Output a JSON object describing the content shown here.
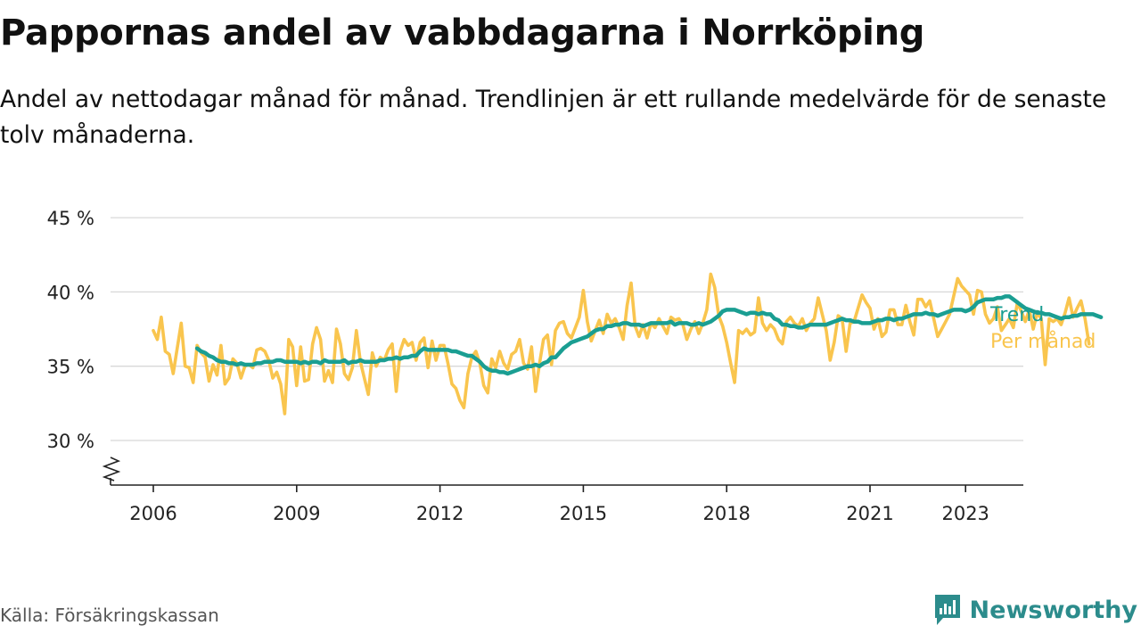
{
  "title": "Pappornas andel av vabbdagarna i Norrköping",
  "subtitle": "Andel av nettodagar månad för månad. Trendlinjen är ett rullande medelvärde för de senaste tolv månaderna.",
  "source": "Källa: Försäkringskassan",
  "brand": "Newsworthy",
  "colors": {
    "trend": "#1a9e92",
    "monthly": "#f9c54e",
    "grid": "#d8d8d8",
    "brand": "#2c8c8c"
  },
  "chart_data": {
    "type": "line",
    "y_unit": "%",
    "ylim": [
      27,
      45
    ],
    "y_ticks": [
      30,
      35,
      40,
      45
    ],
    "y_tick_labels": [
      "30 %",
      "35 %",
      "40 %",
      "45 %"
    ],
    "x_ticks": [
      2006,
      2009,
      2012,
      2015,
      2018,
      2021,
      2023
    ],
    "x_tick_labels": [
      "2006",
      "2009",
      "2012",
      "2015",
      "2018",
      "2021",
      "2023"
    ],
    "axis_break": true,
    "grid": true,
    "legend": "right-end labels",
    "series": [
      {
        "name": "Per månad",
        "color": "#f9c54e",
        "start": "2006-01",
        "values": [
          37.4,
          36.8,
          38.3,
          36.0,
          35.8,
          34.5,
          36.2,
          37.9,
          35.0,
          34.9,
          33.9,
          36.4,
          35.9,
          35.6,
          34.0,
          35.1,
          34.4,
          36.4,
          33.8,
          34.2,
          35.5,
          35.2,
          34.2,
          35.0,
          35.1,
          34.9,
          36.1,
          36.2,
          36.0,
          35.4,
          34.2,
          34.6,
          33.8,
          31.8,
          36.8,
          36.3,
          33.7,
          36.3,
          34.0,
          34.1,
          36.5,
          37.6,
          36.8,
          34.0,
          34.7,
          33.9,
          37.5,
          36.5,
          34.5,
          34.1,
          34.9,
          37.4,
          35.3,
          34.2,
          33.1,
          35.9,
          35.0,
          35.6,
          35.4,
          36.1,
          36.5,
          33.3,
          36.0,
          36.8,
          36.4,
          36.6,
          35.4,
          36.6,
          36.9,
          34.9,
          36.7,
          35.4,
          36.4,
          36.4,
          35.2,
          33.8,
          33.5,
          32.7,
          32.2,
          34.5,
          35.6,
          36.0,
          35.2,
          33.7,
          33.2,
          35.5,
          34.9,
          36.0,
          35.2,
          34.8,
          35.8,
          36.0,
          36.8,
          35.2,
          34.8,
          36.3,
          33.3,
          35.2,
          36.8,
          37.1,
          35.1,
          37.4,
          37.9,
          38.0,
          37.2,
          36.9,
          37.6,
          38.3,
          40.1,
          38.0,
          36.7,
          37.4,
          38.1,
          37.2,
          38.5,
          37.9,
          38.2,
          37.6,
          36.8,
          39.1,
          40.6,
          37.7,
          37.0,
          37.8,
          36.9,
          37.9,
          37.6,
          38.2,
          37.7,
          37.2,
          38.3,
          38.1,
          38.2,
          37.8,
          36.8,
          37.5,
          38.0,
          37.2,
          37.9,
          38.8,
          41.2,
          40.3,
          38.4,
          37.7,
          36.6,
          35.2,
          33.9,
          37.4,
          37.2,
          37.5,
          37.1,
          37.3,
          39.6,
          37.9,
          37.4,
          37.8,
          37.5,
          36.8,
          36.5,
          38.0,
          38.3,
          37.9,
          37.7,
          38.2,
          37.4,
          37.9,
          38.2,
          39.6,
          38.5,
          37.4,
          35.4,
          36.6,
          38.4,
          38.2,
          36.0,
          37.9,
          38.0,
          38.9,
          39.8,
          39.3,
          38.9,
          37.5,
          38.2,
          37.0,
          37.3,
          38.8,
          38.8,
          37.8,
          37.8,
          39.1,
          38.0,
          37.1,
          39.5,
          39.5,
          39.0,
          39.4,
          38.2,
          37.0,
          37.5,
          38.0,
          38.5,
          39.7,
          40.9,
          40.4,
          40.1,
          39.8,
          38.5,
          40.1,
          40.0,
          38.5,
          37.9,
          38.2,
          39.0,
          37.4,
          37.8,
          38.2,
          37.6,
          39.3,
          38.7,
          38.0,
          38.8,
          37.5,
          38.6,
          38.2,
          35.1,
          38.2,
          38.0,
          38.2,
          37.8,
          38.6,
          39.6,
          38.3,
          38.9,
          39.4,
          38.2,
          36.5
        ]
      },
      {
        "name": "Trend",
        "color": "#1a9e92",
        "start": "2006-12",
        "values": [
          36.2,
          36.0,
          35.9,
          35.7,
          35.6,
          35.4,
          35.3,
          35.3,
          35.2,
          35.2,
          35.1,
          35.2,
          35.1,
          35.1,
          35.1,
          35.2,
          35.2,
          35.3,
          35.3,
          35.3,
          35.4,
          35.4,
          35.3,
          35.3,
          35.3,
          35.3,
          35.2,
          35.3,
          35.2,
          35.3,
          35.3,
          35.2,
          35.4,
          35.3,
          35.3,
          35.3,
          35.3,
          35.4,
          35.2,
          35.3,
          35.3,
          35.4,
          35.3,
          35.3,
          35.3,
          35.3,
          35.4,
          35.4,
          35.5,
          35.5,
          35.6,
          35.5,
          35.6,
          35.6,
          35.7,
          35.7,
          36.0,
          36.2,
          36.1,
          36.1,
          36.1,
          36.1,
          36.1,
          36.1,
          36.0,
          36.0,
          35.9,
          35.8,
          35.7,
          35.7,
          35.5,
          35.3,
          35.0,
          34.8,
          34.7,
          34.7,
          34.6,
          34.6,
          34.5,
          34.6,
          34.7,
          34.8,
          34.9,
          35.0,
          35.0,
          35.1,
          35.0,
          35.2,
          35.3,
          35.6,
          35.6,
          35.9,
          36.2,
          36.4,
          36.6,
          36.7,
          36.8,
          36.9,
          37.0,
          37.2,
          37.4,
          37.5,
          37.5,
          37.7,
          37.7,
          37.8,
          37.8,
          37.9,
          37.9,
          37.8,
          37.8,
          37.8,
          37.7,
          37.8,
          37.9,
          37.9,
          37.9,
          37.9,
          37.9,
          38.0,
          37.8,
          37.9,
          37.9,
          37.9,
          37.8,
          37.8,
          37.9,
          37.8,
          37.9,
          38.0,
          38.2,
          38.4,
          38.7,
          38.8,
          38.8,
          38.8,
          38.7,
          38.6,
          38.5,
          38.6,
          38.6,
          38.5,
          38.6,
          38.5,
          38.5,
          38.2,
          38.1,
          37.8,
          37.8,
          37.7,
          37.7,
          37.6,
          37.6,
          37.7,
          37.8,
          37.8,
          37.8,
          37.8,
          37.8,
          37.9,
          38.0,
          38.1,
          38.2,
          38.1,
          38.1,
          38.0,
          38.0,
          37.9,
          37.9,
          37.9,
          38.0,
          38.1,
          38.1,
          38.2,
          38.2,
          38.1,
          38.2,
          38.2,
          38.3,
          38.4,
          38.5,
          38.5,
          38.5,
          38.6,
          38.5,
          38.5,
          38.4,
          38.5,
          38.6,
          38.7,
          38.8,
          38.8,
          38.8,
          38.7,
          38.8,
          39.0,
          39.3,
          39.4,
          39.5,
          39.5,
          39.5,
          39.6,
          39.6,
          39.7,
          39.7,
          39.5,
          39.3,
          39.1,
          38.9,
          38.8,
          38.7,
          38.6,
          38.6,
          38.5,
          38.5,
          38.4,
          38.3,
          38.2,
          38.3,
          38.3,
          38.4,
          38.4,
          38.5,
          38.5,
          38.5,
          38.5,
          38.4,
          38.3
        ]
      }
    ]
  }
}
